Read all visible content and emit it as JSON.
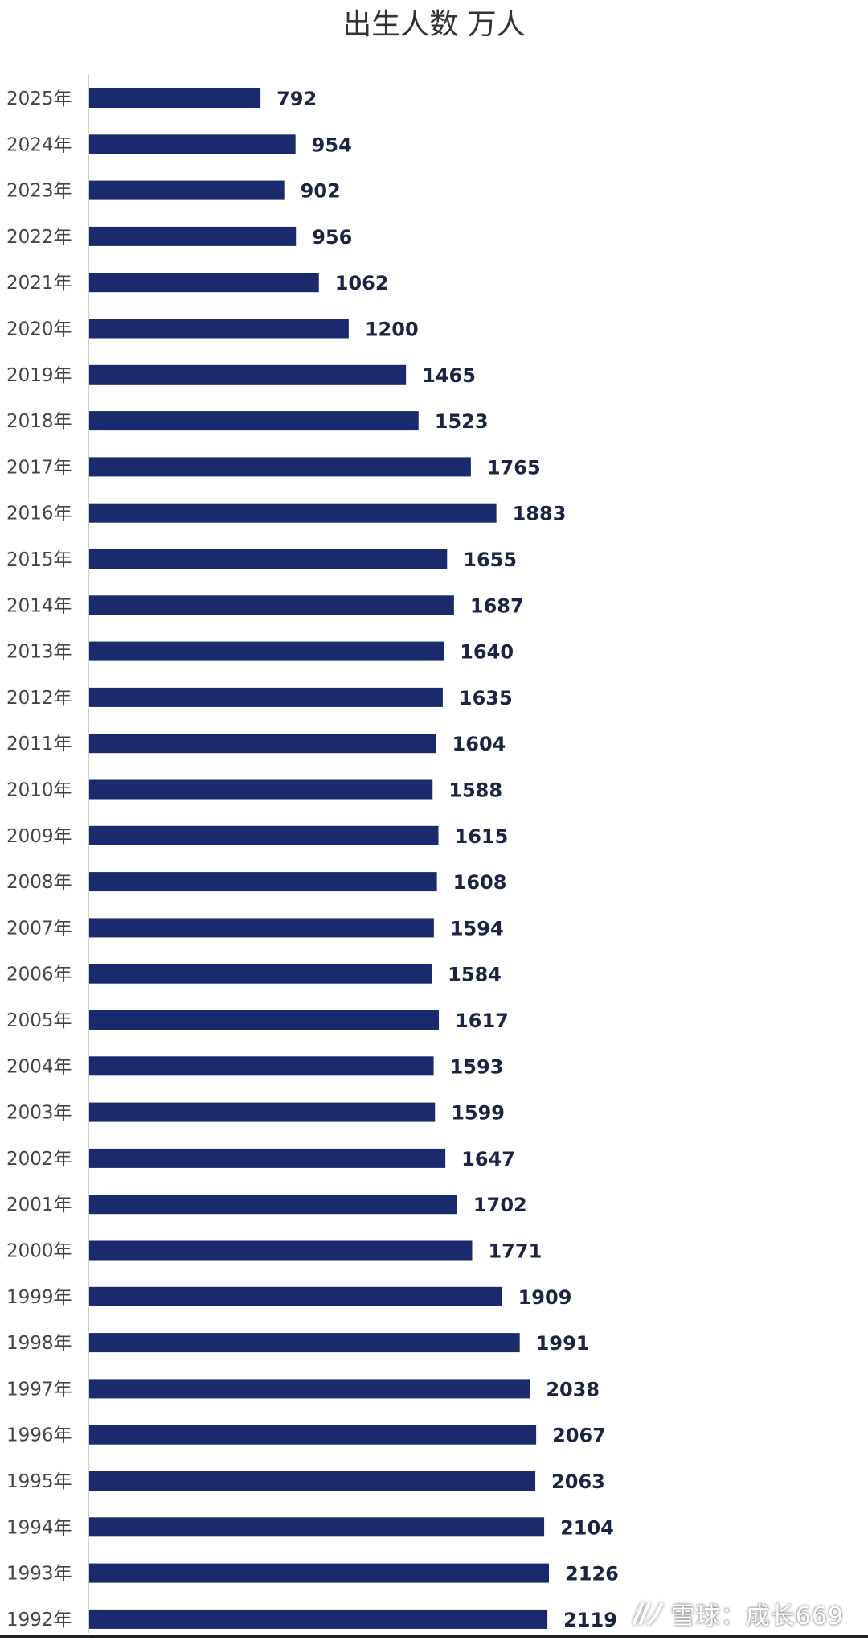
{
  "watermark": {
    "text": "雪球：成长669",
    "icon": "xueqiu-logo-icon"
  },
  "chart_data": {
    "type": "bar",
    "orientation": "horizontal",
    "title": "出生人数 万人",
    "xlabel": "",
    "ylabel": "",
    "grid": false,
    "legend": "none",
    "bar_color": "#1a2a6c",
    "categories": [
      "2025年",
      "2024年",
      "2023年",
      "2022年",
      "2021年",
      "2020年",
      "2019年",
      "2018年",
      "2017年",
      "2016年",
      "2015年",
      "2014年",
      "2013年",
      "2012年",
      "2011年",
      "2010年",
      "2009年",
      "2008年",
      "2007年",
      "2006年",
      "2005年",
      "2004年",
      "2003年",
      "2002年",
      "2001年",
      "2000年",
      "1999年",
      "1998年",
      "1997年",
      "1996年",
      "1995年",
      "1994年",
      "1993年",
      "1992年"
    ],
    "values": [
      792,
      954,
      902,
      956,
      1062,
      1200,
      1465,
      1523,
      1765,
      1883,
      1655,
      1687,
      1640,
      1635,
      1604,
      1588,
      1615,
      1608,
      1594,
      1584,
      1617,
      1593,
      1599,
      1647,
      1702,
      1771,
      1909,
      1991,
      2038,
      2067,
      2063,
      2104,
      2126,
      2119
    ],
    "xlim": [
      0,
      2126
    ]
  }
}
